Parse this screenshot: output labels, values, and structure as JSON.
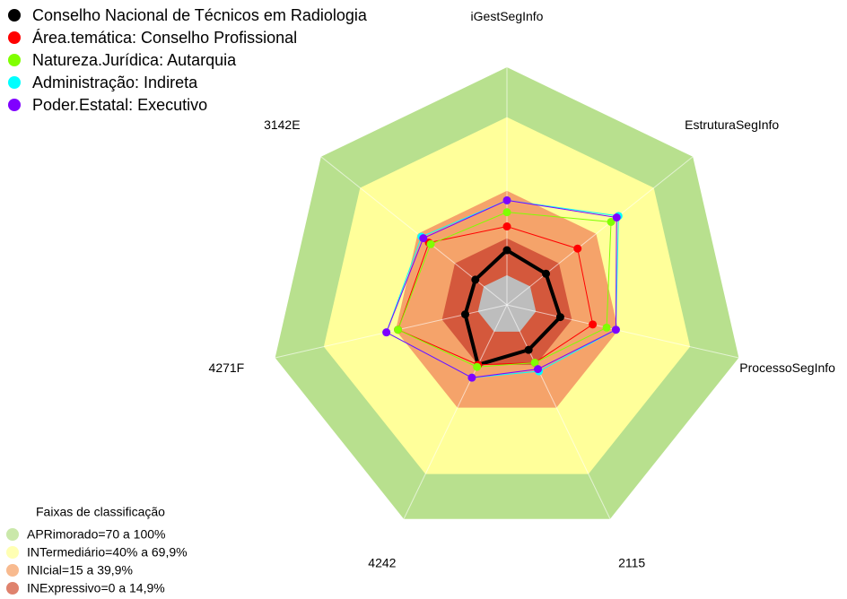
{
  "chart_data": {
    "type": "radar",
    "categories": [
      "iGestSegInfo",
      "EstruturaSegInfo",
      "ProcessoSegInfo",
      "2115",
      "4242",
      "4271F",
      "3142E"
    ],
    "rlim": [
      0,
      100
    ],
    "series": [
      {
        "name": "Conselho Nacional de Técnicos em Radiologia",
        "color": "#000000",
        "values": [
          23,
          21,
          23,
          21,
          28,
          18,
          17
        ]
      },
      {
        "name": "Área.temática: Conselho Profissional",
        "color": "#ff0000",
        "values": [
          33,
          38,
          37,
          27,
          28,
          47,
          42
        ]
      },
      {
        "name": "Natureza.Jurídica: Autarquia",
        "color": "#80ff00",
        "values": [
          39,
          56,
          43,
          27,
          29,
          47,
          41
        ]
      },
      {
        "name": "Administração: Indireta",
        "color": "#00ffff",
        "values": [
          44,
          60,
          47,
          31,
          34,
          52,
          46
        ]
      },
      {
        "name": "Poder.Estatal: Executivo",
        "color": "#8000ff",
        "values": [
          44,
          59,
          47,
          30,
          34,
          52,
          45
        ]
      }
    ],
    "bands_title": "Faixas de classificação",
    "bands": [
      {
        "name": "APRimorado=70 a 100%",
        "color": "#b8e08e",
        "r": 100
      },
      {
        "name": "INTermediário=40% a 69,9%",
        "color": "#ffff9a",
        "r": 79
      },
      {
        "name": "INIcial=15 a 39,9%",
        "color": "#f5a36a",
        "r": 48
      },
      {
        "name": "INExpressivo=0 a 14,9%",
        "color": "#d4583c",
        "r": 28
      },
      {
        "name": null,
        "color": "#bdbdbd",
        "r": 12.5
      }
    ]
  }
}
